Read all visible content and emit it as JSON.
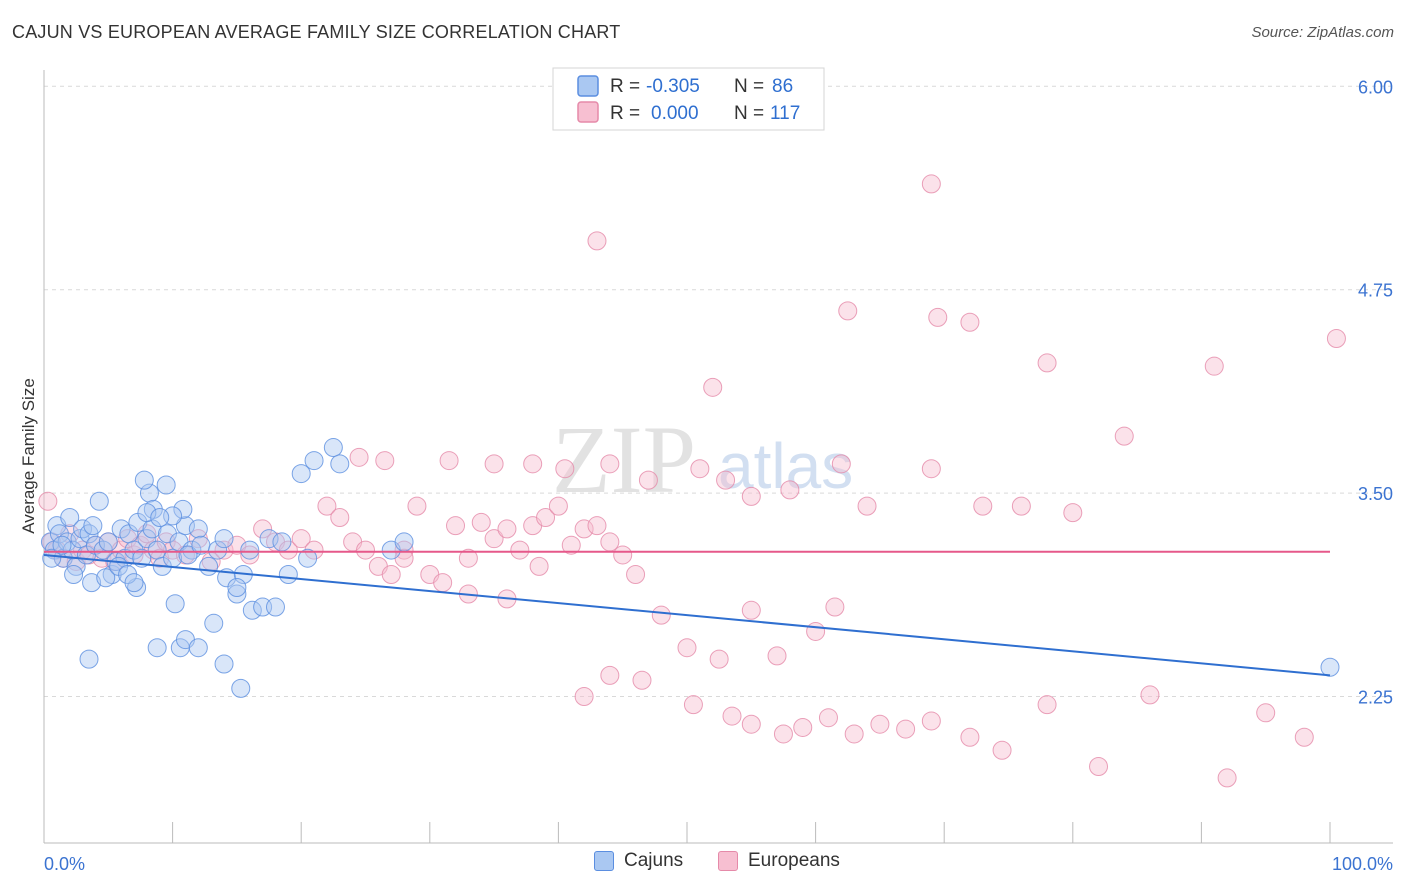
{
  "title": "CAJUN VS EUROPEAN AVERAGE FAMILY SIZE CORRELATION CHART",
  "source": "Source: ZipAtlas.com",
  "colors": {
    "cajuns_fill": "#aac8f2",
    "cajuns_stroke": "#5b8ee0",
    "cajuns_line": "#2f6fd0",
    "europeans_fill": "#f7bfd1",
    "europeans_stroke": "#e58aa9",
    "europeans_line": "#e6588a",
    "tick_text": "#3b73d1",
    "grid": "#d9d9d9"
  },
  "legend": {
    "rows": [
      {
        "r_label": "R =",
        "r_value": "-0.305",
        "n_label": "N =",
        "n_value": "86"
      },
      {
        "r_label": "R =",
        "r_value": "0.000",
        "n_label": "N =",
        "n_value": "117"
      }
    ]
  },
  "bottom_legend": {
    "cajuns": "Cajuns",
    "europeans": "Europeans"
  },
  "watermark": {
    "zip": "ZIP",
    "atlas": "atlas"
  },
  "chart_data": {
    "type": "scatter",
    "title": "CAJUN VS EUROPEAN AVERAGE FAMILY SIZE CORRELATION CHART",
    "xlabel": "",
    "ylabel": "Average Family Size",
    "xlim": [
      0,
      100
    ],
    "ylim": [
      1.35,
      6.1
    ],
    "x_tick_labels": [
      "0.0%",
      "100.0%"
    ],
    "y_ticks": [
      2.25,
      3.5,
      4.75,
      6.0
    ],
    "y_tick_labels": [
      "2.25",
      "3.50",
      "4.75",
      "6.00"
    ],
    "grid": true,
    "series": [
      {
        "name": "Cajuns",
        "r": -0.305,
        "n": 86,
        "trend": {
          "x0": 0,
          "y0": 3.12,
          "x1": 100,
          "y1": 2.38
        },
        "points": [
          [
            0.5,
            3.2
          ],
          [
            0.8,
            3.15
          ],
          [
            1.0,
            3.3
          ],
          [
            1.2,
            3.25
          ],
          [
            1.5,
            3.1
          ],
          [
            1.8,
            3.2
          ],
          [
            2.0,
            3.35
          ],
          [
            2.2,
            3.15
          ],
          [
            2.5,
            3.05
          ],
          [
            2.8,
            3.22
          ],
          [
            3.0,
            3.28
          ],
          [
            3.3,
            3.12
          ],
          [
            3.5,
            3.25
          ],
          [
            3.8,
            3.3
          ],
          [
            4.0,
            3.18
          ],
          [
            4.3,
            3.45
          ],
          [
            4.6,
            3.15
          ],
          [
            5.0,
            3.2
          ],
          [
            5.3,
            3.0
          ],
          [
            5.6,
            3.08
          ],
          [
            6.0,
            3.28
          ],
          [
            6.3,
            3.1
          ],
          [
            6.6,
            3.25
          ],
          [
            7.0,
            3.15
          ],
          [
            7.3,
            3.32
          ],
          [
            7.6,
            3.1
          ],
          [
            8.0,
            3.22
          ],
          [
            8.4,
            3.28
          ],
          [
            8.8,
            3.15
          ],
          [
            9.2,
            3.05
          ],
          [
            9.6,
            3.25
          ],
          [
            10.0,
            3.1
          ],
          [
            10.5,
            3.2
          ],
          [
            11.0,
            3.3
          ],
          [
            11.5,
            3.15
          ],
          [
            12.0,
            3.28
          ],
          [
            0.6,
            3.1
          ],
          [
            1.4,
            3.18
          ],
          [
            2.3,
            3.0
          ],
          [
            3.7,
            2.95
          ],
          [
            4.8,
            2.98
          ],
          [
            5.8,
            3.05
          ],
          [
            7.2,
            2.92
          ],
          [
            8.2,
            3.5
          ],
          [
            8.5,
            3.4
          ],
          [
            9.5,
            3.55
          ],
          [
            10.8,
            3.4
          ],
          [
            11.2,
            3.12
          ],
          [
            12.2,
            3.18
          ],
          [
            12.8,
            3.05
          ],
          [
            13.5,
            3.15
          ],
          [
            14.2,
            2.98
          ],
          [
            15.0,
            2.88
          ],
          [
            15.5,
            3.0
          ],
          [
            16.2,
            2.78
          ],
          [
            17.0,
            2.8
          ],
          [
            18.0,
            2.8
          ],
          [
            19.0,
            3.0
          ],
          [
            20.5,
            3.1
          ],
          [
            6.5,
            3.0
          ],
          [
            7.0,
            2.95
          ],
          [
            8.8,
            2.55
          ],
          [
            10.2,
            2.82
          ],
          [
            10.6,
            2.55
          ],
          [
            11.0,
            2.6
          ],
          [
            12.0,
            2.55
          ],
          [
            13.2,
            2.7
          ],
          [
            14.0,
            2.45
          ],
          [
            15.3,
            2.3
          ],
          [
            15.0,
            2.92
          ],
          [
            16.0,
            3.15
          ],
          [
            17.5,
            3.22
          ],
          [
            18.5,
            3.2
          ],
          [
            20.0,
            3.62
          ],
          [
            21.0,
            3.7
          ],
          [
            22.5,
            3.78
          ],
          [
            23.0,
            3.68
          ],
          [
            27.0,
            3.15
          ],
          [
            28.0,
            3.2
          ],
          [
            3.5,
            2.48
          ],
          [
            8.0,
            3.38
          ],
          [
            10.0,
            3.36
          ],
          [
            9.0,
            3.35
          ],
          [
            7.8,
            3.58
          ],
          [
            14.0,
            3.22
          ],
          [
            100.0,
            2.43
          ]
        ]
      },
      {
        "name": "Europeans",
        "r": 0.0,
        "n": 117,
        "trend": {
          "x0": 0,
          "y0": 3.14,
          "x1": 100,
          "y1": 3.14
        },
        "points": [
          [
            0.6,
            3.2
          ],
          [
            1.0,
            3.15
          ],
          [
            1.5,
            3.1
          ],
          [
            2.0,
            3.25
          ],
          [
            2.5,
            3.08
          ],
          [
            3.0,
            3.15
          ],
          [
            3.5,
            3.12
          ],
          [
            4.0,
            3.18
          ],
          [
            4.5,
            3.1
          ],
          [
            5.0,
            3.2
          ],
          [
            5.5,
            3.08
          ],
          [
            6.0,
            3.15
          ],
          [
            6.5,
            3.22
          ],
          [
            7.0,
            3.12
          ],
          [
            7.5,
            3.18
          ],
          [
            8.0,
            3.25
          ],
          [
            8.5,
            3.15
          ],
          [
            9.0,
            3.1
          ],
          [
            9.5,
            3.2
          ],
          [
            10.0,
            3.15
          ],
          [
            11.0,
            3.12
          ],
          [
            12.0,
            3.22
          ],
          [
            13.0,
            3.08
          ],
          [
            14.0,
            3.15
          ],
          [
            15.0,
            3.18
          ],
          [
            16.0,
            3.12
          ],
          [
            17.0,
            3.28
          ],
          [
            18.0,
            3.2
          ],
          [
            19.0,
            3.15
          ],
          [
            20.0,
            3.22
          ],
          [
            21.0,
            3.15
          ],
          [
            22.0,
            3.42
          ],
          [
            23.0,
            3.35
          ],
          [
            24.0,
            3.2
          ],
          [
            25.0,
            3.15
          ],
          [
            26.0,
            3.05
          ],
          [
            27.0,
            3.0
          ],
          [
            28.0,
            3.15
          ],
          [
            29.0,
            3.42
          ],
          [
            30.0,
            3.0
          ],
          [
            31.0,
            2.95
          ],
          [
            32.0,
            3.3
          ],
          [
            33.0,
            3.1
          ],
          [
            34.0,
            3.32
          ],
          [
            35.0,
            3.22
          ],
          [
            36.0,
            3.28
          ],
          [
            37.0,
            3.15
          ],
          [
            38.0,
            3.3
          ],
          [
            39.0,
            3.35
          ],
          [
            40.0,
            3.42
          ],
          [
            41.0,
            3.18
          ],
          [
            42.0,
            3.28
          ],
          [
            43.0,
            3.3
          ],
          [
            44.0,
            3.2
          ],
          [
            45.0,
            3.12
          ],
          [
            24.5,
            3.72
          ],
          [
            26.5,
            3.7
          ],
          [
            31.5,
            3.7
          ],
          [
            35.0,
            3.68
          ],
          [
            38.0,
            3.68
          ],
          [
            40.5,
            3.65
          ],
          [
            44.0,
            3.68
          ],
          [
            47.0,
            3.58
          ],
          [
            51.0,
            3.65
          ],
          [
            53.0,
            3.58
          ],
          [
            55.0,
            3.48
          ],
          [
            58.0,
            3.52
          ],
          [
            62.0,
            3.68
          ],
          [
            64.0,
            3.42
          ],
          [
            69.0,
            3.65
          ],
          [
            73.0,
            3.42
          ],
          [
            76.0,
            3.42
          ],
          [
            80.0,
            3.38
          ],
          [
            43.0,
            5.05
          ],
          [
            52.0,
            4.15
          ],
          [
            69.0,
            5.4
          ],
          [
            72.0,
            4.55
          ],
          [
            69.5,
            4.58
          ],
          [
            78.0,
            4.3
          ],
          [
            62.5,
            4.62
          ],
          [
            91.0,
            4.28
          ],
          [
            100.5,
            4.45
          ],
          [
            84.0,
            3.85
          ],
          [
            46.0,
            3.0
          ],
          [
            48.0,
            2.75
          ],
          [
            50.0,
            2.55
          ],
          [
            52.5,
            2.48
          ],
          [
            55.0,
            2.78
          ],
          [
            57.0,
            2.5
          ],
          [
            60.0,
            2.65
          ],
          [
            61.5,
            2.8
          ],
          [
            42.0,
            2.25
          ],
          [
            46.5,
            2.35
          ],
          [
            50.5,
            2.2
          ],
          [
            53.5,
            2.13
          ],
          [
            55.0,
            2.08
          ],
          [
            57.5,
            2.02
          ],
          [
            59.0,
            2.06
          ],
          [
            61.0,
            2.12
          ],
          [
            63.0,
            2.02
          ],
          [
            65.0,
            2.08
          ],
          [
            67.0,
            2.05
          ],
          [
            69.0,
            2.1
          ],
          [
            72.0,
            2.0
          ],
          [
            74.5,
            1.92
          ],
          [
            78.0,
            2.2
          ],
          [
            82.0,
            1.82
          ],
          [
            86.0,
            2.26
          ],
          [
            92.0,
            1.75
          ],
          [
            95.0,
            2.15
          ],
          [
            98.0,
            2.0
          ],
          [
            44.0,
            2.38
          ],
          [
            33.0,
            2.88
          ],
          [
            36.0,
            2.85
          ],
          [
            38.5,
            3.05
          ],
          [
            28.0,
            3.1
          ],
          [
            0.3,
            3.45
          ]
        ]
      }
    ]
  }
}
